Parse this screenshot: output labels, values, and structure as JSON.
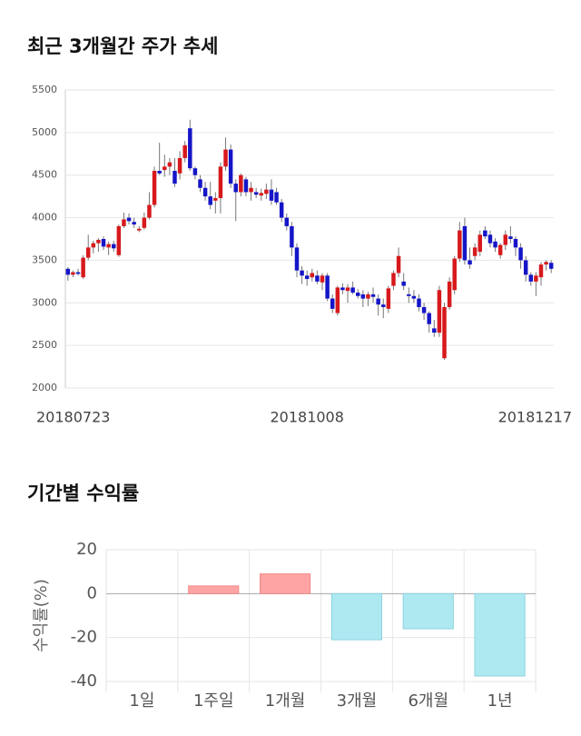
{
  "chart_data": [
    {
      "type": "candlestick",
      "title": "최근 3개월간 주가 추세",
      "categories": [
        "20180723",
        null,
        null,
        null,
        null,
        null,
        null,
        null,
        null,
        null,
        null,
        null,
        null,
        null,
        null,
        null,
        null,
        null,
        null,
        null,
        null,
        null,
        null,
        null,
        null,
        null,
        null,
        null,
        null,
        null,
        null,
        null,
        null,
        null,
        null,
        null,
        null,
        null,
        null,
        null,
        null,
        null,
        null,
        null,
        null,
        null,
        null,
        "20181008",
        null,
        null,
        null,
        null,
        null,
        null,
        null,
        null,
        null,
        null,
        null,
        null,
        null,
        null,
        null,
        null,
        null,
        null,
        null,
        null,
        null,
        null,
        null,
        null,
        null,
        null,
        null,
        null,
        null,
        null,
        null,
        null,
        null,
        null,
        null,
        null,
        null,
        null,
        null,
        null,
        null,
        null,
        null,
        null,
        null,
        null,
        null,
        "20181217"
      ],
      "open": [
        3400,
        3330,
        3360,
        3300,
        3530,
        3650,
        3700,
        3750,
        3650,
        3690,
        3560,
        3900,
        4000,
        3950,
        3850,
        3880,
        4000,
        4150,
        4550,
        4560,
        4600,
        4550,
        4520,
        4700,
        5050,
        4580,
        4450,
        4350,
        4250,
        4200,
        4230,
        4600,
        4800,
        4400,
        4300,
        4450,
        4300,
        4300,
        4260,
        4280,
        4330,
        4300,
        4180,
        4000,
        3900,
        3650,
        3380,
        3320,
        3300,
        3320,
        3240,
        3320,
        3050,
        2880,
        3180,
        3140,
        3180,
        3120,
        3100,
        3050,
        3100,
        3050,
        2980,
        2930,
        3200,
        3350,
        3250,
        3100,
        3080,
        3050,
        2950,
        2880,
        2700,
        2650,
        2350,
        2950,
        3150,
        3520,
        3900,
        3500,
        3550,
        3600,
        3850,
        3800,
        3720,
        3560,
        3680,
        3780,
        3750,
        3650,
        3500,
        3330,
        3250,
        3300,
        3450,
        3470
      ],
      "high": [
        3420,
        3380,
        3400,
        3560,
        3800,
        3730,
        3760,
        3780,
        3720,
        3730,
        3920,
        4060,
        4050,
        4000,
        3900,
        4060,
        4300,
        4600,
        4880,
        4740,
        4700,
        4700,
        4780,
        4900,
        5150,
        4600,
        4500,
        4420,
        4420,
        4300,
        4650,
        4940,
        4860,
        4450,
        4520,
        4480,
        4420,
        4350,
        4340,
        4400,
        4450,
        4350,
        4220,
        4050,
        3950,
        3700,
        3430,
        3380,
        3400,
        3380,
        3350,
        3350,
        3100,
        3200,
        3230,
        3220,
        3250,
        3160,
        3150,
        3130,
        3180,
        3100,
        3050,
        3200,
        3380,
        3650,
        3350,
        3180,
        3150,
        3100,
        3000,
        2900,
        2800,
        3200,
        3000,
        3300,
        3550,
        3950,
        4000,
        3650,
        3700,
        3850,
        3900,
        3850,
        3760,
        3700,
        3850,
        3900,
        3780,
        3700,
        3550,
        3360,
        3360,
        3480,
        3500,
        3500
      ],
      "low": [
        3260,
        3300,
        3320,
        3280,
        3500,
        3580,
        3600,
        3620,
        3560,
        3600,
        3540,
        3880,
        3920,
        3880,
        3830,
        3860,
        3980,
        4120,
        4500,
        4480,
        4500,
        4360,
        4450,
        4650,
        4550,
        4450,
        4300,
        4200,
        4100,
        4050,
        4050,
        4550,
        4350,
        3960,
        4250,
        4250,
        4200,
        4230,
        4200,
        4220,
        4150,
        4150,
        3950,
        3850,
        3550,
        3300,
        3220,
        3200,
        3250,
        3220,
        3150,
        3020,
        2880,
        2850,
        3100,
        3000,
        3100,
        3050,
        2950,
        2960,
        3000,
        2850,
        2820,
        2880,
        3150,
        3300,
        3150,
        3000,
        3000,
        2900,
        2800,
        2650,
        2600,
        2600,
        2330,
        2920,
        3100,
        3480,
        3450,
        3400,
        3500,
        3550,
        3750,
        3650,
        3600,
        3520,
        3620,
        3700,
        3550,
        3400,
        3250,
        3200,
        3080,
        3200,
        3380,
        3350
      ],
      "close": [
        3330,
        3360,
        3340,
        3530,
        3650,
        3700,
        3740,
        3660,
        3690,
        3640,
        3900,
        3980,
        3960,
        3920,
        3870,
        4000,
        4150,
        4550,
        4520,
        4600,
        4650,
        4400,
        4700,
        4850,
        4580,
        4500,
        4350,
        4250,
        4150,
        4230,
        4600,
        4800,
        4400,
        4300,
        4500,
        4300,
        4350,
        4270,
        4290,
        4330,
        4200,
        4180,
        4000,
        3900,
        3650,
        3380,
        3320,
        3280,
        3350,
        3250,
        3320,
        3050,
        2930,
        3180,
        3150,
        3180,
        3120,
        3080,
        3050,
        3100,
        3070,
        2980,
        2950,
        3170,
        3350,
        3550,
        3200,
        3080,
        3050,
        2950,
        2880,
        2750,
        2650,
        3150,
        2950,
        3250,
        3520,
        3850,
        3500,
        3450,
        3650,
        3800,
        3780,
        3700,
        3650,
        3680,
        3800,
        3750,
        3650,
        3500,
        3330,
        3250,
        3320,
        3450,
        3480,
        3400
      ],
      "up_color": "#d7191c",
      "down_color": "#1515c8",
      "ylim": [
        2000,
        5500
      ],
      "yticks": [
        2000,
        2500,
        3000,
        3500,
        4000,
        4500,
        5000,
        5500
      ],
      "grid": true
    },
    {
      "type": "bar",
      "title": "기간별 수익률",
      "y_label": "수익률(%)",
      "categories": [
        "1일",
        "1주일",
        "1개월",
        "3개월",
        "6개월",
        "1년"
      ],
      "values": [
        0,
        3.5,
        9,
        -21,
        -16,
        -37.5
      ],
      "positive_color": "#ffa4a4",
      "negative_color": "#aee9f2",
      "ylim": [
        -40,
        20
      ],
      "yticks": [
        -40,
        -20,
        0,
        20
      ],
      "grid": true
    }
  ]
}
